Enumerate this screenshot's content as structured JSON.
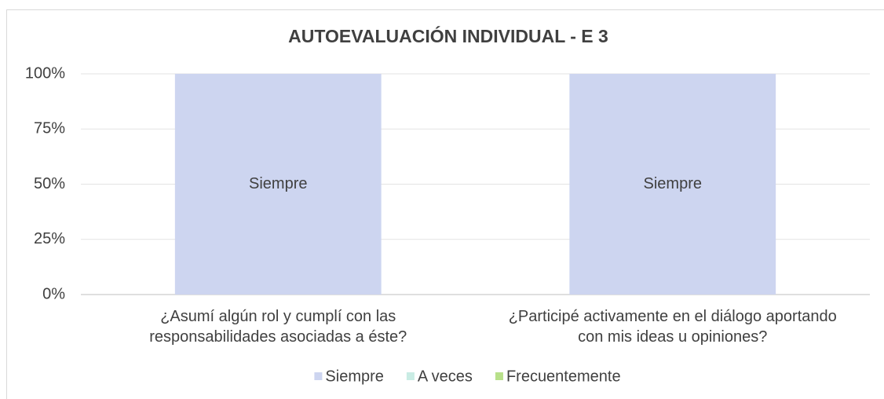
{
  "chart_data": {
    "type": "stacked_bar",
    "title": "AUTOEVALUACIÓN INDIVIDUAL - E 3",
    "categories": [
      "¿Asumí algún rol y cumplí con las\nresponsabilidades asociadas a éste?",
      "¿Participé activamente en el diálogo aportando\ncon mis ideas u opiniones?"
    ],
    "series": [
      {
        "name": "Siempre",
        "color": "#cdd5f0",
        "values": [
          100,
          100
        ]
      },
      {
        "name": "A veces",
        "color": "#c9ece4",
        "values": [
          0,
          0
        ]
      },
      {
        "name": "Frecuentemente",
        "color": "#b8e08a",
        "values": [
          0,
          0
        ]
      }
    ],
    "ylim": [
      0,
      100
    ],
    "yticks": [
      {
        "value": 0,
        "label": "0%"
      },
      {
        "value": 25,
        "label": "25%"
      },
      {
        "value": 50,
        "label": "50%"
      },
      {
        "value": 75,
        "label": "75%"
      },
      {
        "value": 100,
        "label": "100%"
      }
    ],
    "grid": true,
    "legend": "bottom"
  }
}
